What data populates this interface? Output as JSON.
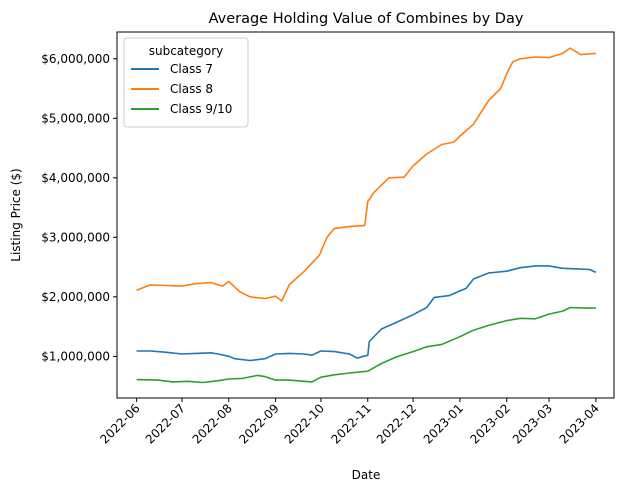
{
  "chart_data": {
    "type": "line",
    "title": "Average Holding Value of Combines by Day",
    "xlabel": "Date",
    "ylabel": "Listing Price ($)",
    "x_ticks": [
      "2022-06",
      "2022-07",
      "2022-08",
      "2022-09",
      "2022-10",
      "2022-11",
      "2022-12",
      "2023-01",
      "2023-02",
      "2023-03",
      "2023-04"
    ],
    "y_ticks": [
      1000000,
      2000000,
      3000000,
      4000000,
      5000000,
      6000000
    ],
    "y_tick_labels": [
      "$1,000,000",
      "$2,000,000",
      "$3,000,000",
      "$4,000,000",
      "$5,000,000",
      "$6,000,000"
    ],
    "xlim": [
      "2022-05-19",
      "2023-04-13"
    ],
    "ylim": [
      300000,
      6450000
    ],
    "grid": false,
    "legend": {
      "title": "subcategory",
      "placement": "top-left"
    },
    "series": [
      {
        "name": "Class 7",
        "color": "#1f77b4",
        "points": [
          [
            "2022-06-01",
            1090000
          ],
          [
            "2022-06-10",
            1090000
          ],
          [
            "2022-06-20",
            1070000
          ],
          [
            "2022-07-01",
            1040000
          ],
          [
            "2022-07-10",
            1050000
          ],
          [
            "2022-07-20",
            1060000
          ],
          [
            "2022-07-25",
            1040000
          ],
          [
            "2022-08-01",
            1000000
          ],
          [
            "2022-08-05",
            960000
          ],
          [
            "2022-08-15",
            930000
          ],
          [
            "2022-08-25",
            960000
          ],
          [
            "2022-09-01",
            1040000
          ],
          [
            "2022-09-10",
            1050000
          ],
          [
            "2022-09-20",
            1040000
          ],
          [
            "2022-09-25",
            1020000
          ],
          [
            "2022-10-01",
            1090000
          ],
          [
            "2022-10-10",
            1080000
          ],
          [
            "2022-10-20",
            1040000
          ],
          [
            "2022-10-25",
            970000
          ],
          [
            "2022-11-01",
            1020000
          ],
          [
            "2022-11-02",
            1250000
          ],
          [
            "2022-11-10",
            1460000
          ],
          [
            "2022-11-20",
            1570000
          ],
          [
            "2022-12-01",
            1700000
          ],
          [
            "2022-12-10",
            1820000
          ],
          [
            "2022-12-15",
            1990000
          ],
          [
            "2022-12-25",
            2020000
          ],
          [
            "2023-01-01",
            2100000
          ],
          [
            "2023-01-05",
            2140000
          ],
          [
            "2023-01-10",
            2300000
          ],
          [
            "2023-01-20",
            2400000
          ],
          [
            "2023-02-01",
            2430000
          ],
          [
            "2023-02-10",
            2490000
          ],
          [
            "2023-02-20",
            2520000
          ],
          [
            "2023-03-01",
            2520000
          ],
          [
            "2023-03-10",
            2480000
          ],
          [
            "2023-03-20",
            2470000
          ],
          [
            "2023-03-28",
            2460000
          ],
          [
            "2023-04-01",
            2410000
          ]
        ]
      },
      {
        "name": "Class 8",
        "color": "#ff7f0e",
        "points": [
          [
            "2022-06-01",
            2110000
          ],
          [
            "2022-06-10",
            2200000
          ],
          [
            "2022-06-20",
            2190000
          ],
          [
            "2022-07-01",
            2180000
          ],
          [
            "2022-07-10",
            2220000
          ],
          [
            "2022-07-20",
            2240000
          ],
          [
            "2022-07-28",
            2180000
          ],
          [
            "2022-08-01",
            2260000
          ],
          [
            "2022-08-08",
            2090000
          ],
          [
            "2022-08-15",
            2000000
          ],
          [
            "2022-08-25",
            1970000
          ],
          [
            "2022-09-01",
            2010000
          ],
          [
            "2022-09-05",
            1930000
          ],
          [
            "2022-09-10",
            2200000
          ],
          [
            "2022-09-20",
            2430000
          ],
          [
            "2022-09-30",
            2700000
          ],
          [
            "2022-10-05",
            3000000
          ],
          [
            "2022-10-10",
            3150000
          ],
          [
            "2022-10-20",
            3180000
          ],
          [
            "2022-10-30",
            3200000
          ],
          [
            "2022-11-01",
            3600000
          ],
          [
            "2022-11-05",
            3750000
          ],
          [
            "2022-11-15",
            4000000
          ],
          [
            "2022-11-25",
            4010000
          ],
          [
            "2022-12-01",
            4200000
          ],
          [
            "2022-12-10",
            4400000
          ],
          [
            "2022-12-20",
            4560000
          ],
          [
            "2022-12-28",
            4600000
          ],
          [
            "2023-01-01",
            4700000
          ],
          [
            "2023-01-10",
            4900000
          ],
          [
            "2023-01-20",
            5300000
          ],
          [
            "2023-01-28",
            5500000
          ],
          [
            "2023-02-01",
            5750000
          ],
          [
            "2023-02-05",
            5950000
          ],
          [
            "2023-02-10",
            6000000
          ],
          [
            "2023-02-20",
            6030000
          ],
          [
            "2023-03-01",
            6020000
          ],
          [
            "2023-03-10",
            6090000
          ],
          [
            "2023-03-15",
            6180000
          ],
          [
            "2023-03-18",
            6130000
          ],
          [
            "2023-03-22",
            6070000
          ],
          [
            "2023-04-01",
            6090000
          ]
        ]
      },
      {
        "name": "Class 9/10",
        "color": "#2ca02c",
        "points": [
          [
            "2022-06-01",
            610000
          ],
          [
            "2022-06-15",
            600000
          ],
          [
            "2022-06-25",
            570000
          ],
          [
            "2022-07-05",
            580000
          ],
          [
            "2022-07-15",
            560000
          ],
          [
            "2022-07-25",
            590000
          ],
          [
            "2022-08-01",
            620000
          ],
          [
            "2022-08-10",
            630000
          ],
          [
            "2022-08-20",
            680000
          ],
          [
            "2022-08-25",
            660000
          ],
          [
            "2022-09-01",
            600000
          ],
          [
            "2022-09-10",
            600000
          ],
          [
            "2022-09-25",
            570000
          ],
          [
            "2022-10-01",
            650000
          ],
          [
            "2022-10-10",
            690000
          ],
          [
            "2022-10-20",
            720000
          ],
          [
            "2022-11-01",
            750000
          ],
          [
            "2022-11-10",
            880000
          ],
          [
            "2022-11-20",
            990000
          ],
          [
            "2022-12-01",
            1080000
          ],
          [
            "2022-12-10",
            1160000
          ],
          [
            "2022-12-20",
            1200000
          ],
          [
            "2023-01-01",
            1330000
          ],
          [
            "2023-01-10",
            1440000
          ],
          [
            "2023-01-20",
            1520000
          ],
          [
            "2023-02-01",
            1600000
          ],
          [
            "2023-02-10",
            1640000
          ],
          [
            "2023-02-20",
            1630000
          ],
          [
            "2023-03-01",
            1710000
          ],
          [
            "2023-03-10",
            1760000
          ],
          [
            "2023-03-15",
            1820000
          ],
          [
            "2023-03-25",
            1810000
          ],
          [
            "2023-04-01",
            1810000
          ]
        ]
      }
    ]
  }
}
